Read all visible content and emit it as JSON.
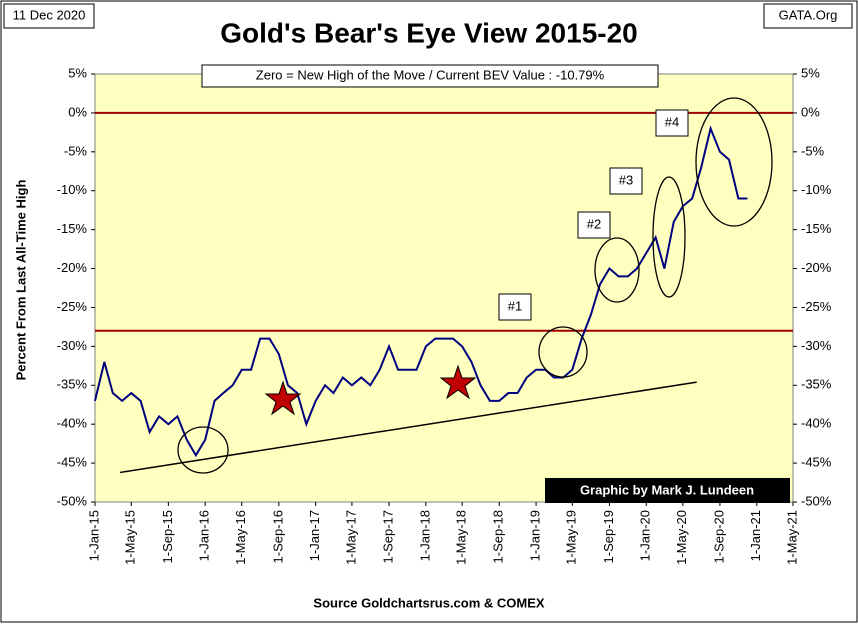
{
  "chart_data": {
    "type": "line",
    "title": "Gold's Bear's Eye View 2015-20",
    "date_label": "11 Dec 2020",
    "source_tag": "GATA.Org",
    "subtitle": "Zero = New High of the Move / Current  BEV Value : -10.79%",
    "y_label": "Percent  From Last  All-Time High",
    "credit": "Graphic by Mark J. Lundeen",
    "x_label": "Source Goldchartsrus.com & COMEX",
    "annotations": [
      "#1",
      "#2",
      "#3",
      "#4"
    ],
    "xlim": [
      "2015-01-01",
      "2021-05-01"
    ],
    "xticks": [
      {
        "value": "2015-01-01",
        "label": "1-Jan-15"
      },
      {
        "value": "2015-05-01",
        "label": "1-May-15"
      },
      {
        "value": "2015-09-01",
        "label": "1-Sep-15"
      },
      {
        "value": "2016-01-01",
        "label": "1-Jan-16"
      },
      {
        "value": "2016-05-01",
        "label": "1-May-16"
      },
      {
        "value": "2016-09-01",
        "label": "1-Sep-16"
      },
      {
        "value": "2017-01-01",
        "label": "1-Jan-17"
      },
      {
        "value": "2017-05-01",
        "label": "1-May-17"
      },
      {
        "value": "2017-09-01",
        "label": "1-Sep-17"
      },
      {
        "value": "2018-01-01",
        "label": "1-Jan-18"
      },
      {
        "value": "2018-05-01",
        "label": "1-May-18"
      },
      {
        "value": "2018-09-01",
        "label": "1-Sep-18"
      },
      {
        "value": "2019-01-01",
        "label": "1-Jan-19"
      },
      {
        "value": "2019-05-01",
        "label": "1-May-19"
      },
      {
        "value": "2019-09-01",
        "label": "1-Sep-19"
      },
      {
        "value": "2020-01-01",
        "label": "1-Jan-20"
      },
      {
        "value": "2020-05-01",
        "label": "1-May-20"
      },
      {
        "value": "2020-09-01",
        "label": "1-Sep-20"
      },
      {
        "value": "2021-01-01",
        "label": "1-Jan-21"
      },
      {
        "value": "2021-05-01",
        "label": "1-May-21"
      }
    ],
    "ylim": [
      -50,
      5
    ],
    "yticks": [
      {
        "value": 5,
        "label": "5%"
      },
      {
        "value": 0,
        "label": "0%"
      },
      {
        "value": -5,
        "label": "-5%"
      },
      {
        "value": -10,
        "label": "-10%"
      },
      {
        "value": -15,
        "label": "-15%"
      },
      {
        "value": -20,
        "label": "-20%"
      },
      {
        "value": -25,
        "label": "-25%"
      },
      {
        "value": -30,
        "label": "-30%"
      },
      {
        "value": -35,
        "label": "-35%"
      },
      {
        "value": -40,
        "label": "-40%"
      },
      {
        "value": -45,
        "label": "-45%"
      },
      {
        "value": -50,
        "label": "-50%"
      }
    ],
    "reference_lines": [
      {
        "value": 0,
        "color": "#a00000"
      },
      {
        "value": -28,
        "color": "#a00000"
      }
    ],
    "trendline": {
      "x": [
        "2015-03-25",
        "2020-06-16"
      ],
      "y": [
        -46.2,
        -34.6
      ],
      "color": "#000000"
    },
    "x": [
      "2015-01-01",
      "2015-02-01",
      "2015-03-01",
      "2015-04-01",
      "2015-05-01",
      "2015-06-01",
      "2015-07-01",
      "2015-08-01",
      "2015-09-01",
      "2015-10-01",
      "2015-11-01",
      "2015-12-01",
      "2016-01-01",
      "2016-02-01",
      "2016-03-01",
      "2016-04-01",
      "2016-05-01",
      "2016-06-01",
      "2016-07-01",
      "2016-08-01",
      "2016-09-01",
      "2016-10-01",
      "2016-11-01",
      "2016-12-01",
      "2017-01-01",
      "2017-02-01",
      "2017-03-01",
      "2017-04-01",
      "2017-05-01",
      "2017-06-01",
      "2017-07-01",
      "2017-08-01",
      "2017-09-01",
      "2017-10-01",
      "2017-11-01",
      "2017-12-01",
      "2018-01-01",
      "2018-02-01",
      "2018-03-01",
      "2018-04-01",
      "2018-05-01",
      "2018-06-01",
      "2018-07-01",
      "2018-08-01",
      "2018-09-01",
      "2018-10-01",
      "2018-11-01",
      "2018-12-01",
      "2019-01-01",
      "2019-02-01",
      "2019-03-01",
      "2019-04-01",
      "2019-05-01",
      "2019-06-01",
      "2019-07-01",
      "2019-08-01",
      "2019-09-01",
      "2019-10-01",
      "2019-11-01",
      "2019-12-01",
      "2020-01-01",
      "2020-02-01",
      "2020-03-01",
      "2020-04-01",
      "2020-05-01",
      "2020-06-01",
      "2020-07-01",
      "2020-08-01",
      "2020-09-01",
      "2020-10-01",
      "2020-11-01",
      "2020-12-01"
    ],
    "series": [
      {
        "color": "#000080",
        "values": [
          -37,
          -32,
          -36,
          -37,
          -36,
          -37,
          -41,
          -39,
          -40,
          -39,
          -42,
          -44,
          -42,
          -37,
          -36,
          -35,
          -33,
          -33,
          -29,
          -29,
          -31,
          -35,
          -36,
          -40,
          -37,
          -35,
          -36,
          -34,
          -35,
          -34,
          -35,
          -33,
          -30,
          -33,
          -33,
          -33,
          -30,
          -29,
          -29,
          -29,
          -30,
          -32,
          -35,
          -37,
          -37,
          -36,
          -36,
          -34,
          -33,
          -33,
          -34,
          -34,
          -33,
          -29,
          -26,
          -22,
          -20,
          -21,
          -21,
          -20,
          -18,
          -16,
          -20,
          -14,
          -12,
          -11,
          -7,
          -2,
          -5,
          -6,
          -11,
          -11
        ]
      }
    ]
  }
}
